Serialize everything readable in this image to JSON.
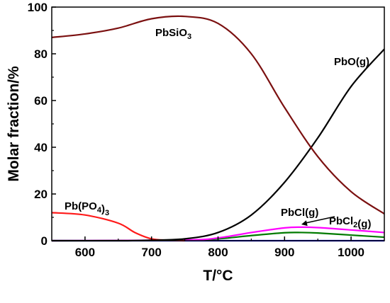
{
  "chart_data": {
    "type": "line",
    "xlabel": "T/°C",
    "ylabel": "Molar fraction/%",
    "xlim": [
      550,
      1050
    ],
    "ylim": [
      0,
      100
    ],
    "xticks": [
      600,
      700,
      800,
      900,
      1000
    ],
    "yticks": [
      0,
      20,
      40,
      60,
      80,
      100
    ],
    "grid": false,
    "series": [
      {
        "name": "PbSiO3",
        "label_parts": [
          {
            "text": "PbSiO",
            "sub": false
          },
          {
            "text": "3",
            "sub": true
          }
        ],
        "color": "#7b1010",
        "x": [
          550,
          600,
          650,
          700,
          750,
          800,
          850,
          900,
          950,
          1000,
          1050
        ],
        "y": [
          87,
          88.5,
          91,
          95,
          96,
          93,
          80,
          57,
          36,
          21,
          11.5
        ]
      },
      {
        "name": "PbO(g)",
        "label_parts": [
          {
            "text": "PbO(g)",
            "sub": false
          }
        ],
        "color": "#000000",
        "x": [
          550,
          650,
          700,
          750,
          800,
          850,
          900,
          950,
          1000,
          1050
        ],
        "y": [
          0,
          0,
          0.2,
          0.8,
          3.5,
          11,
          25,
          44,
          66,
          82
        ]
      },
      {
        "name": "Pb(PO4)3",
        "label_parts": [
          {
            "text": "Pb(PO",
            "sub": false
          },
          {
            "text": "4",
            "sub": true
          },
          {
            "text": ")",
            "sub": false
          },
          {
            "text": "3",
            "sub": true
          }
        ],
        "color": "#ff1a1a",
        "x": [
          550,
          600,
          650,
          675,
          700,
          725,
          750
        ],
        "y": [
          12,
          11,
          7.5,
          3.5,
          0.8,
          0.2,
          0
        ]
      },
      {
        "name": "PbCl(g)",
        "label_parts": [
          {
            "text": "PbCl(g)",
            "sub": false
          }
        ],
        "color": "#ff00ff",
        "x": [
          550,
          750,
          800,
          850,
          900,
          925,
          950,
          1000,
          1050
        ],
        "y": [
          0,
          0.3,
          1.2,
          3.5,
          5.5,
          5.8,
          5.6,
          4.6,
          3.5
        ]
      },
      {
        "name": "PbCl2(g)",
        "label_parts": [
          {
            "text": "PbCl",
            "sub": false
          },
          {
            "text": "2",
            "sub": true
          },
          {
            "text": "(g)",
            "sub": false
          }
        ],
        "color": "#007a00",
        "x": [
          550,
          750,
          800,
          850,
          900,
          925,
          950,
          1000,
          1050
        ],
        "y": [
          0,
          0.2,
          0.8,
          2.2,
          3.4,
          3.5,
          3.3,
          2.4,
          1.5
        ]
      },
      {
        "name": "Blue baseline",
        "color": "#0000ff",
        "x": [
          550,
          1050
        ],
        "y": [
          0,
          0
        ]
      }
    ]
  }
}
